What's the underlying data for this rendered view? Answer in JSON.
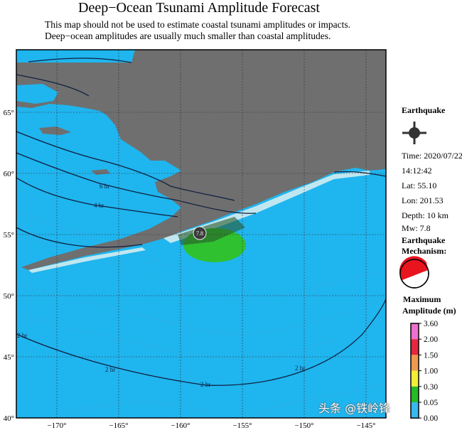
{
  "title": "Deep−Ocean Tsunami Amplitude Forecast",
  "subtitle_lines": [
    "This map should not be used to estimate coastal tsunami amplitudes or impacts.",
    "Deep−ocean amplitudes are usually much smaller than coastal amplitudes."
  ],
  "map": {
    "lon_range": [
      -173.3,
      -143.4
    ],
    "lat_range": [
      40,
      70
    ],
    "lon_ticks": [
      "−170°",
      "−165°",
      "−160°",
      "−155°",
      "−150°",
      "−145°"
    ],
    "lat_ticks": [
      "40°",
      "45°",
      "50°",
      "55°",
      "60°",
      "65°"
    ],
    "ocean_color": "#1fb5ef",
    "land_color": "#6f6f6f",
    "epicenter_label": "7.8",
    "contour_labels": [
      "6 hr",
      "4 hr",
      "2 hr",
      "2 hr",
      "2 hr",
      "2 hr"
    ]
  },
  "earthquake": {
    "heading": "Earthquake",
    "icon": "epicenter-crosshair-icon",
    "time_label": "Time: 2020/07/22",
    "time_clock": "14:12:42",
    "lat": "Lat: 55.10",
    "lon": "Lon: 201.53",
    "depth": "Depth: 10 km",
    "mw": "Mw: 7.8",
    "mechanism_heading_1": "Earthquake",
    "mechanism_heading_2": "Mechanism:",
    "mechanism_icon": "beachball-icon"
  },
  "legend": {
    "title_1": "Maximum",
    "title_2": "Amplitude (m)",
    "labels": [
      "3.60",
      "2.00",
      "1.50",
      "1.00",
      "0.30",
      "0.05",
      "0.00"
    ],
    "colors": [
      "#ef6fcf",
      "#e5283f",
      "#ef9a4f",
      "#f2ef36",
      "#26bb26",
      "#38b9ee"
    ]
  },
  "watermark": "头条 @铁岭锋"
}
